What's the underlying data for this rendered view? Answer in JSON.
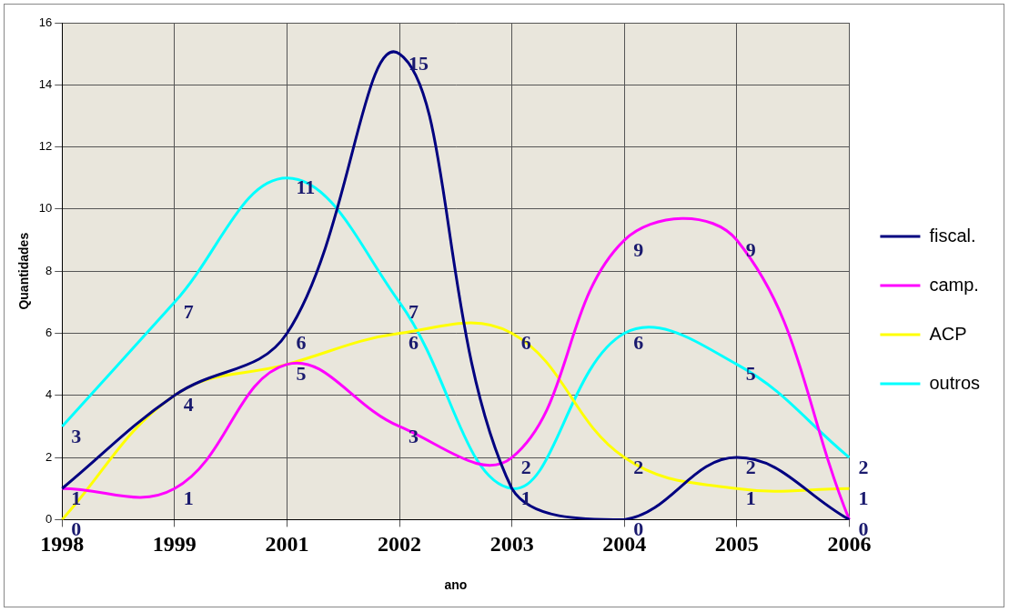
{
  "chart_data": {
    "type": "line",
    "x_label": "ano",
    "y_label": "Quantidades",
    "categories": [
      "1998",
      "1999",
      "2001",
      "2002",
      "2003",
      "2004",
      "2005",
      "2006"
    ],
    "series": [
      {
        "name": "fiscal.",
        "color": "#000080",
        "values": [
          1,
          4,
          6,
          15,
          1,
          0,
          2,
          0
        ]
      },
      {
        "name": "camp.",
        "color": "#ff00ff",
        "values": [
          1,
          1,
          5,
          3,
          2,
          9,
          9,
          0
        ]
      },
      {
        "name": "ACP",
        "color": "#ffff00",
        "values": [
          0,
          4,
          5,
          6,
          6,
          2,
          1,
          1
        ]
      },
      {
        "name": "outros",
        "color": "#00ffff",
        "values": [
          3,
          7,
          11,
          7,
          1,
          6,
          5,
          2
        ]
      }
    ],
    "ylim": [
      0,
      16
    ],
    "yticks": [
      0,
      2,
      4,
      6,
      8,
      10,
      12,
      14,
      16
    ],
    "grid": true,
    "legend": "right",
    "data_labels": true,
    "marker": "none",
    "line_style": "solid"
  }
}
